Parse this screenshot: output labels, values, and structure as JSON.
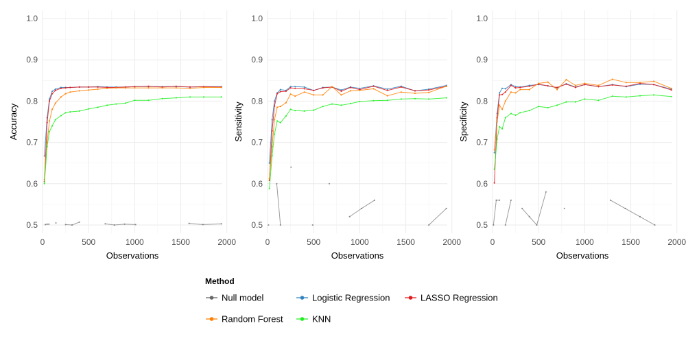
{
  "chart_data": [
    {
      "type": "line",
      "title": "",
      "xlabel": "Observations",
      "ylabel": "Accuracy",
      "xlim": [
        0,
        1950
      ],
      "ylim": [
        0.48,
        1.02
      ],
      "xticks": [
        "0",
        "500",
        "1000",
        "1500",
        "2000"
      ],
      "yticks": [
        "0.5",
        "0.6",
        "0.7",
        "0.8",
        "0.9",
        "1.0"
      ],
      "grid": true,
      "series": [
        {
          "name": "Null model",
          "color": "#666666",
          "segments": [
            {
              "x": [
                30,
                50,
                70
              ],
              "y": [
                0.501,
                0.502,
                0.502
              ]
            },
            {
              "x": [
                145
              ],
              "y": [
                0.505
              ]
            },
            {
              "x": [
                250,
                320,
                400
              ],
              "y": [
                0.501,
                0.5,
                0.507
              ]
            },
            {
              "x": [
                680,
                780,
                890,
                1010
              ],
              "y": [
                0.503,
                0.5,
                0.502,
                0.501
              ]
            },
            {
              "x": [
                1590,
                1740,
                1940
              ],
              "y": [
                0.504,
                0.501,
                0.503
              ]
            }
          ]
        },
        {
          "name": "Logistic Regression",
          "color": "#3182BD",
          "x": [
            20,
            50,
            75,
            105,
            140,
            200,
            250,
            300,
            400,
            500,
            600,
            700,
            800,
            900,
            1000,
            1150,
            1300,
            1450,
            1600,
            1750,
            1940
          ],
          "y": [
            0.667,
            0.76,
            0.805,
            0.824,
            0.829,
            0.833,
            0.833,
            0.833,
            0.834,
            0.834,
            0.835,
            0.834,
            0.834,
            0.834,
            0.835,
            0.835,
            0.835,
            0.835,
            0.834,
            0.835,
            0.835
          ]
        },
        {
          "name": "LASSO Regression",
          "color": "#E41A1C",
          "x": [
            20,
            50,
            75,
            105,
            140,
            200,
            250,
            300,
            400,
            500,
            600,
            700,
            800,
            900,
            1000,
            1150,
            1300,
            1450,
            1600,
            1750,
            1940
          ],
          "y": [
            0.605,
            0.748,
            0.8,
            0.818,
            0.826,
            0.831,
            0.832,
            0.833,
            0.834,
            0.834,
            0.834,
            0.833,
            0.833,
            0.834,
            0.835,
            0.836,
            0.834,
            0.836,
            0.834,
            0.835,
            0.834
          ]
        },
        {
          "name": "Random Forest",
          "color": "#FF7F00",
          "x": [
            20,
            50,
            75,
            105,
            140,
            200,
            250,
            300,
            400,
            500,
            600,
            700,
            800,
            900,
            1000,
            1150,
            1300,
            1450,
            1600,
            1750,
            1940
          ],
          "y": [
            0.61,
            0.7,
            0.752,
            0.78,
            0.795,
            0.81,
            0.818,
            0.822,
            0.825,
            0.827,
            0.829,
            0.831,
            0.832,
            0.832,
            0.832,
            0.832,
            0.832,
            0.832,
            0.831,
            0.833,
            0.833
          ]
        },
        {
          "name": "KNN",
          "color": "#22EE22",
          "x": [
            20,
            50,
            75,
            105,
            140,
            200,
            250,
            300,
            400,
            500,
            600,
            700,
            800,
            900,
            1000,
            1150,
            1300,
            1450,
            1600,
            1750,
            1940
          ],
          "y": [
            0.6,
            0.69,
            0.726,
            0.74,
            0.755,
            0.765,
            0.772,
            0.774,
            0.776,
            0.781,
            0.785,
            0.79,
            0.793,
            0.795,
            0.802,
            0.802,
            0.806,
            0.808,
            0.81,
            0.81,
            0.81
          ]
        }
      ]
    },
    {
      "type": "line",
      "title": "",
      "xlabel": "Observations",
      "ylabel": "Sensitivity",
      "xlim": [
        0,
        1950
      ],
      "ylim": [
        0.48,
        1.02
      ],
      "xticks": [
        "0",
        "500",
        "1000",
        "1500",
        "2000"
      ],
      "yticks": [
        "0.5",
        "0.6",
        "0.7",
        "0.8",
        "0.9",
        "1.0"
      ],
      "grid": true,
      "series": [
        {
          "name": "Null model",
          "color": "#666666",
          "segments": [
            {
              "x": [
                10
              ],
              "y": [
                0.5
              ]
            },
            {
              "x": [
                100,
                140
              ],
              "y": [
                0.6,
                0.5
              ]
            },
            {
              "x": [
                255
              ],
              "y": [
                0.64
              ]
            },
            {
              "x": [
                490
              ],
              "y": [
                0.5
              ]
            },
            {
              "x": [
                670
              ],
              "y": [
                0.6
              ]
            },
            {
              "x": [
                890,
                1020,
                1160
              ],
              "y": [
                0.52,
                0.54,
                0.56
              ]
            },
            {
              "x": [
                1750,
                1940
              ],
              "y": [
                0.5,
                0.54
              ]
            }
          ]
        },
        {
          "name": "Logistic Regression",
          "color": "#3182BD",
          "x": [
            20,
            50,
            75,
            105,
            140,
            200,
            250,
            300,
            400,
            500,
            600,
            700,
            800,
            900,
            1000,
            1150,
            1300,
            1450,
            1600,
            1750,
            1940
          ],
          "y": [
            0.65,
            0.755,
            0.8,
            0.82,
            0.828,
            0.826,
            0.835,
            0.835,
            0.834,
            0.826,
            0.833,
            0.834,
            0.827,
            0.834,
            0.831,
            0.837,
            0.829,
            0.836,
            0.825,
            0.829,
            0.838
          ]
        },
        {
          "name": "LASSO Regression",
          "color": "#E41A1C",
          "x": [
            20,
            50,
            75,
            105,
            140,
            200,
            250,
            300,
            400,
            500,
            600,
            700,
            800,
            900,
            1000,
            1150,
            1300,
            1450,
            1600,
            1750,
            1940
          ],
          "y": [
            0.608,
            0.728,
            0.788,
            0.818,
            0.823,
            0.824,
            0.832,
            0.831,
            0.83,
            0.826,
            0.832,
            0.834,
            0.824,
            0.833,
            0.828,
            0.836,
            0.826,
            0.834,
            0.825,
            0.827,
            0.836
          ]
        },
        {
          "name": "Random Forest",
          "color": "#FF7F00",
          "x": [
            20,
            50,
            75,
            105,
            140,
            200,
            250,
            300,
            400,
            500,
            600,
            700,
            800,
            900,
            1000,
            1150,
            1300,
            1450,
            1600,
            1750,
            1940
          ],
          "y": [
            0.612,
            0.69,
            0.755,
            0.785,
            0.787,
            0.796,
            0.817,
            0.812,
            0.822,
            0.815,
            0.815,
            0.835,
            0.815,
            0.825,
            0.826,
            0.83,
            0.813,
            0.822,
            0.819,
            0.821,
            0.836
          ]
        },
        {
          "name": "KNN",
          "color": "#22EE22",
          "x": [
            20,
            50,
            75,
            105,
            140,
            200,
            250,
            300,
            400,
            500,
            600,
            700,
            800,
            900,
            1000,
            1150,
            1300,
            1450,
            1600,
            1750,
            1940
          ],
          "y": [
            0.588,
            0.668,
            0.72,
            0.752,
            0.748,
            0.764,
            0.78,
            0.777,
            0.776,
            0.778,
            0.787,
            0.793,
            0.79,
            0.794,
            0.799,
            0.801,
            0.802,
            0.805,
            0.806,
            0.805,
            0.808
          ]
        }
      ]
    },
    {
      "type": "line",
      "title": "",
      "xlabel": "Observations",
      "ylabel": "Specificity",
      "xlim": [
        0,
        1950
      ],
      "ylim": [
        0.48,
        1.02
      ],
      "xticks": [
        "0",
        "500",
        "1000",
        "1500",
        "2000"
      ],
      "yticks": [
        "0.5",
        "0.6",
        "0.7",
        "0.8",
        "0.9",
        "1.0"
      ],
      "grid": true,
      "series": [
        {
          "name": "Null model",
          "color": "#666666",
          "segments": [
            {
              "x": [
                10,
                40,
                75
              ],
              "y": [
                0.5,
                0.56,
                0.56
              ]
            },
            {
              "x": [
                140,
                200
              ],
              "y": [
                0.5,
                0.56
              ]
            },
            {
              "x": [
                320,
                400,
                480,
                580
              ],
              "y": [
                0.54,
                0.52,
                0.5,
                0.58
              ]
            },
            {
              "x": [
                780
              ],
              "y": [
                0.54
              ]
            },
            {
              "x": [
                1280,
                1440,
                1600,
                1760
              ],
              "y": [
                0.56,
                0.54,
                0.52,
                0.5
              ]
            }
          ]
        },
        {
          "name": "Logistic Regression",
          "color": "#3182BD",
          "x": [
            20,
            50,
            75,
            105,
            140,
            200,
            250,
            300,
            400,
            500,
            600,
            700,
            800,
            900,
            1000,
            1150,
            1300,
            1450,
            1600,
            1750,
            1940
          ],
          "y": [
            0.675,
            0.77,
            0.82,
            0.831,
            0.83,
            0.84,
            0.835,
            0.834,
            0.838,
            0.84,
            0.837,
            0.832,
            0.842,
            0.834,
            0.84,
            0.835,
            0.84,
            0.835,
            0.841,
            0.84,
            0.829
          ]
        },
        {
          "name": "LASSO Regression",
          "color": "#E41A1C",
          "x": [
            20,
            50,
            75,
            105,
            140,
            200,
            250,
            300,
            400,
            500,
            600,
            700,
            800,
            900,
            1000,
            1150,
            1300,
            1450,
            1600,
            1750,
            1940
          ],
          "y": [
            0.602,
            0.76,
            0.815,
            0.816,
            0.822,
            0.838,
            0.832,
            0.833,
            0.836,
            0.841,
            0.837,
            0.833,
            0.841,
            0.833,
            0.84,
            0.835,
            0.839,
            0.836,
            0.843,
            0.84,
            0.827
          ]
        },
        {
          "name": "Random Forest",
          "color": "#FF7F00",
          "x": [
            20,
            50,
            75,
            105,
            140,
            200,
            250,
            300,
            400,
            500,
            600,
            700,
            800,
            900,
            1000,
            1150,
            1300,
            1450,
            1600,
            1750,
            1940
          ],
          "y": [
            0.682,
            0.75,
            0.79,
            0.78,
            0.8,
            0.822,
            0.82,
            0.828,
            0.828,
            0.843,
            0.846,
            0.828,
            0.852,
            0.838,
            0.843,
            0.838,
            0.853,
            0.845,
            0.845,
            0.848,
            0.831
          ]
        },
        {
          "name": "KNN",
          "color": "#22EE22",
          "x": [
            20,
            50,
            75,
            105,
            140,
            200,
            250,
            300,
            400,
            500,
            600,
            700,
            800,
            900,
            1000,
            1150,
            1300,
            1450,
            1600,
            1750,
            1940
          ],
          "y": [
            0.635,
            0.708,
            0.738,
            0.733,
            0.76,
            0.77,
            0.766,
            0.772,
            0.777,
            0.787,
            0.784,
            0.79,
            0.798,
            0.798,
            0.805,
            0.802,
            0.812,
            0.81,
            0.813,
            0.815,
            0.811
          ]
        }
      ]
    }
  ],
  "legend": {
    "title": "Method",
    "placement": "bottom",
    "items": [
      {
        "label": "Null model",
        "color": "#666666"
      },
      {
        "label": "Logistic Regression",
        "color": "#3182BD"
      },
      {
        "label": "LASSO Regression",
        "color": "#E41A1C"
      },
      {
        "label": "Random Forest",
        "color": "#FF7F00"
      },
      {
        "label": "KNN",
        "color": "#22EE22"
      }
    ]
  }
}
